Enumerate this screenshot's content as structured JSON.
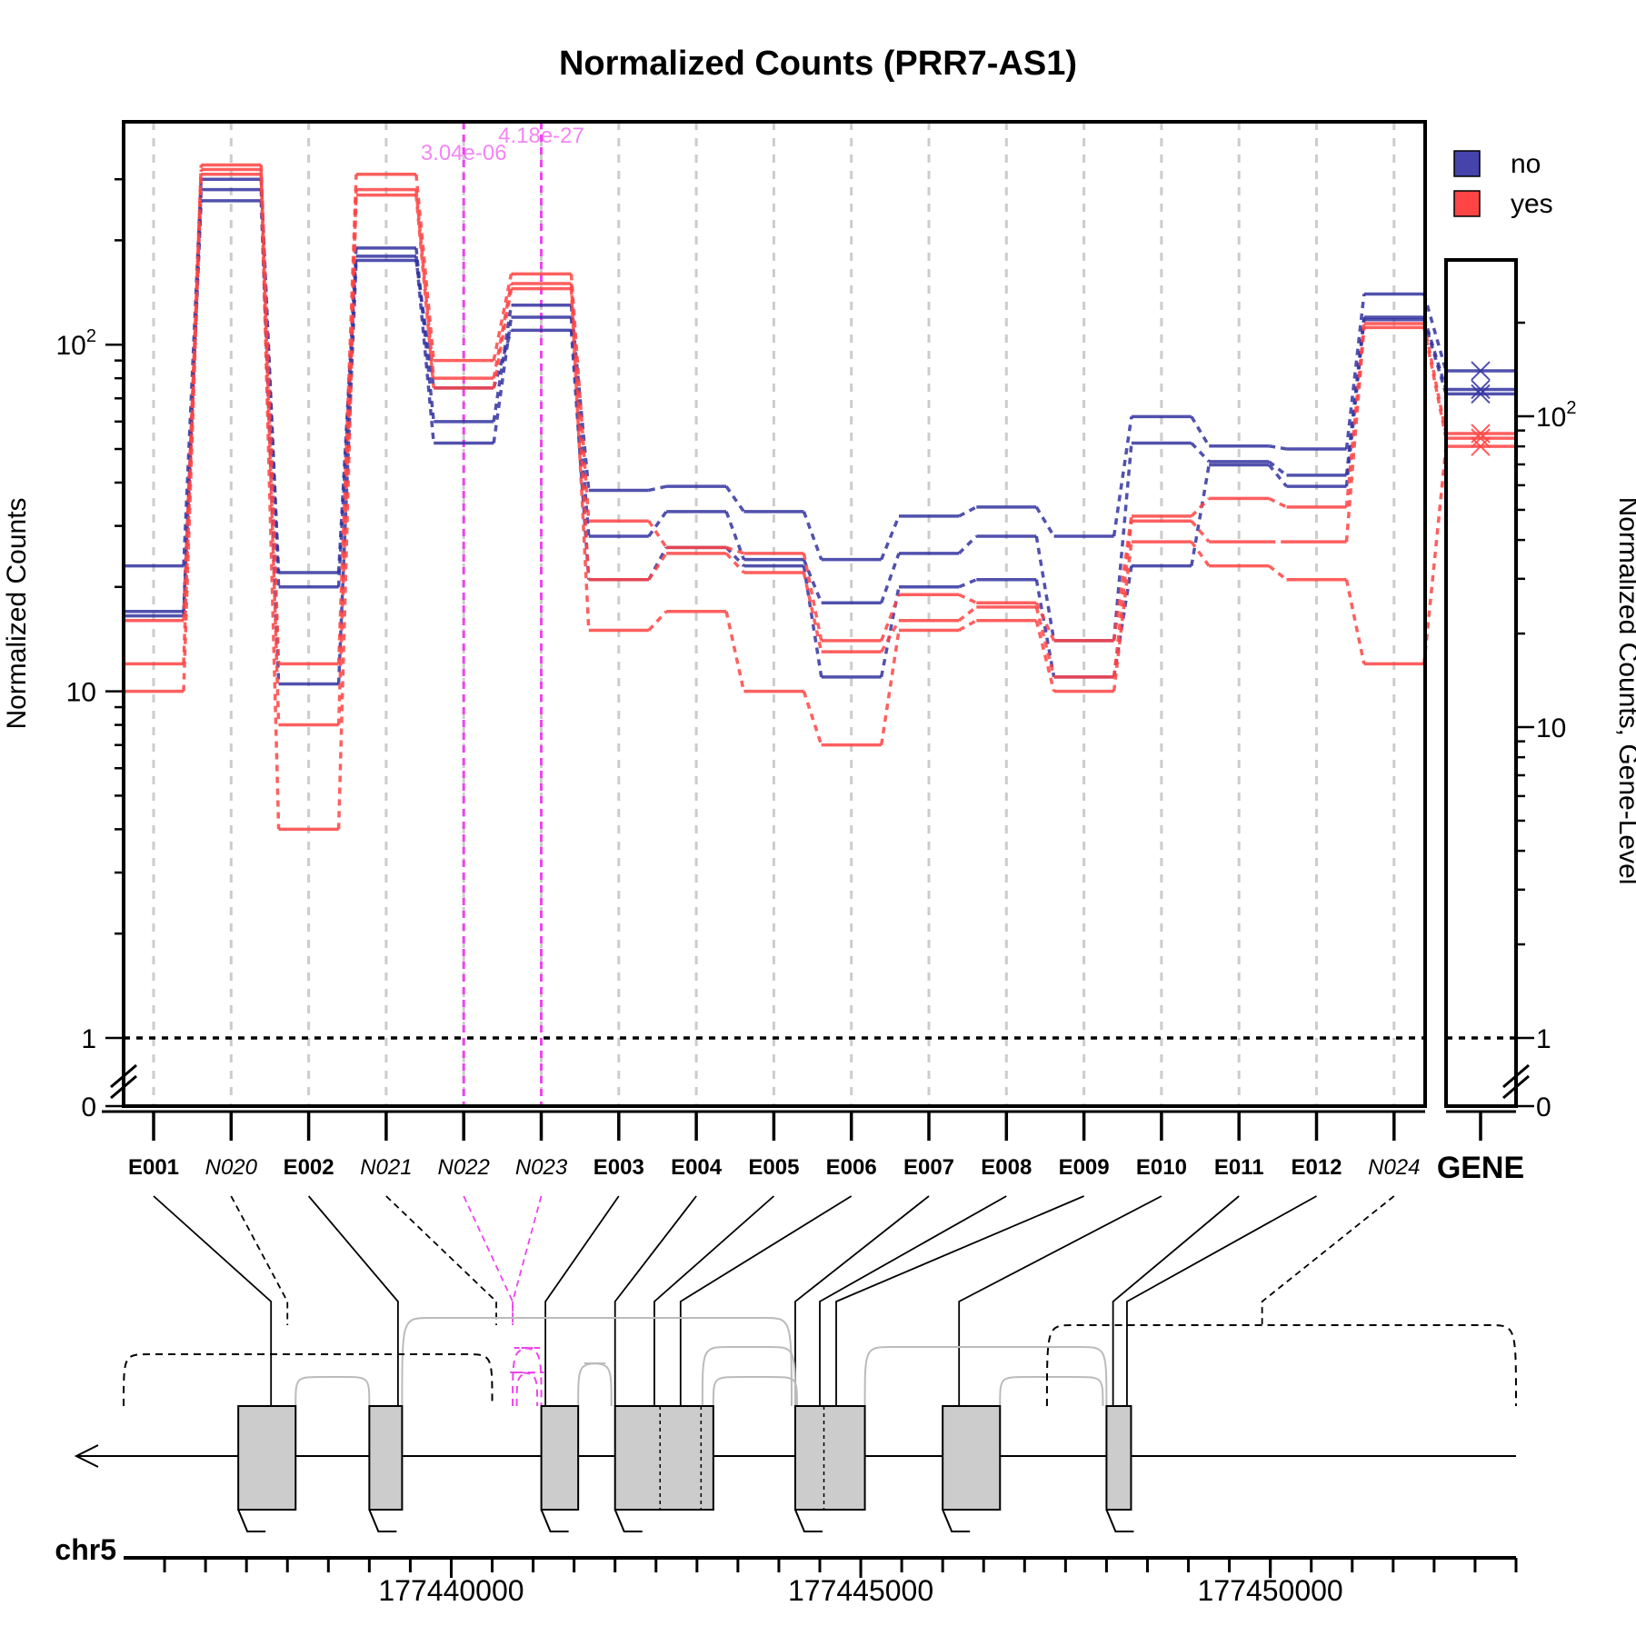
{
  "chart_data": {
    "type": "line",
    "title": "Normalized Counts (PRR7-AS1)",
    "ylabel": "Normalized Counts",
    "ylabel_right": "Normalized Counts, Gene-Level",
    "y_scale": "log",
    "ylim": [
      0,
      350
    ],
    "y_ticks": [
      {
        "value": 0,
        "label": "0",
        "sup": ""
      },
      {
        "value": 1,
        "label": "1",
        "sup": ""
      },
      {
        "value": 10,
        "label": "10",
        "sup": ""
      },
      {
        "value": 100,
        "label": "10",
        "sup": "2"
      }
    ],
    "y_ticks_right": [
      {
        "value": 0,
        "label": "0",
        "sup": ""
      },
      {
        "value": 1,
        "label": "1",
        "sup": ""
      },
      {
        "value": 10,
        "label": "10",
        "sup": ""
      },
      {
        "value": 100,
        "label": "10",
        "sup": "2"
      }
    ],
    "gene_axis_ylim": [
      0,
      250
    ],
    "categories": [
      "E001",
      "N020",
      "E002",
      "N021",
      "N022",
      "N023",
      "E003",
      "E004",
      "E005",
      "E006",
      "E007",
      "E008",
      "E009",
      "E010",
      "E011",
      "E012",
      "N024"
    ],
    "novel_junctions": [
      "N020",
      "N021",
      "N022",
      "N023",
      "N024"
    ],
    "exon_bins": [
      "E001",
      "E002",
      "E003",
      "E004",
      "E005",
      "E006",
      "E007",
      "E008",
      "E009",
      "E010",
      "E011",
      "E012"
    ],
    "gene_label": "GENE",
    "legend": [
      {
        "name": "no",
        "color": "#4444aa"
      },
      {
        "name": "yes",
        "color": "#ff4444"
      }
    ],
    "series": [
      {
        "name": "no",
        "color": "#3333a0",
        "values": [
          23,
          300,
          22,
          190,
          60,
          130,
          38,
          39,
          33,
          24,
          32,
          34,
          28,
          62,
          51,
          50,
          140
        ],
        "gene": 140
      },
      {
        "name": "no",
        "color": "#3333a0",
        "values": [
          17,
          280,
          20,
          180,
          52,
          120,
          28,
          33,
          24,
          18,
          25,
          28,
          14,
          52,
          46,
          42,
          120
        ],
        "gene": 122
      },
      {
        "name": "no",
        "color": "#3333a0",
        "values": [
          16.5,
          260,
          10.5,
          175,
          75,
          110,
          21,
          26,
          23,
          11,
          20,
          21,
          11,
          23,
          45,
          39,
          118
        ],
        "gene": 118
      },
      {
        "name": "yes",
        "color": "#ff4444",
        "values": [
          12,
          330,
          12,
          310,
          90,
          160,
          31,
          26,
          25,
          14,
          19,
          18,
          14,
          32,
          36,
          34,
          115
        ],
        "gene": 88
      },
      {
        "name": "yes",
        "color": "#ff4444",
        "values": [
          10,
          320,
          8,
          280,
          80,
          150,
          21,
          25,
          22,
          13,
          16,
          17.5,
          11,
          31,
          27,
          27,
          112
        ],
        "gene": 85
      },
      {
        "name": "yes",
        "color": "#ff4444",
        "values": [
          16,
          310,
          4,
          270,
          75,
          145,
          15,
          17,
          10,
          7,
          15,
          16,
          10,
          27,
          23,
          21,
          12
        ],
        "gene": 80
      }
    ],
    "pvalues": [
      {
        "label": "3.04e-06",
        "bin": "N022"
      },
      {
        "label": "4.18e-27",
        "bin": "N023"
      }
    ],
    "threshold_line": 1,
    "genome": {
      "chromosome": "chr5",
      "range": [
        177436000,
        177453000
      ],
      "ticks": [
        177440000,
        177445000,
        177450000
      ],
      "tick_labels": [
        "177440000",
        "177445000",
        "177450000"
      ],
      "exons": [
        [
          177437400,
          177438100
        ],
        [
          177439000,
          177439400
        ],
        [
          177441100,
          177441550
        ],
        [
          177442000,
          177443200
        ],
        [
          177444200,
          177445050
        ],
        [
          177446000,
          177446700
        ],
        [
          177448000,
          177448300
        ]
      ],
      "bin_dividers": [
        177442550,
        177443050,
        177444550
      ]
    }
  },
  "colors": {
    "no": "#3333a0",
    "yes": "#ff4444",
    "significant": "#ee44ee",
    "grid": "#cccccc",
    "exon_fill": "#cccccc"
  }
}
